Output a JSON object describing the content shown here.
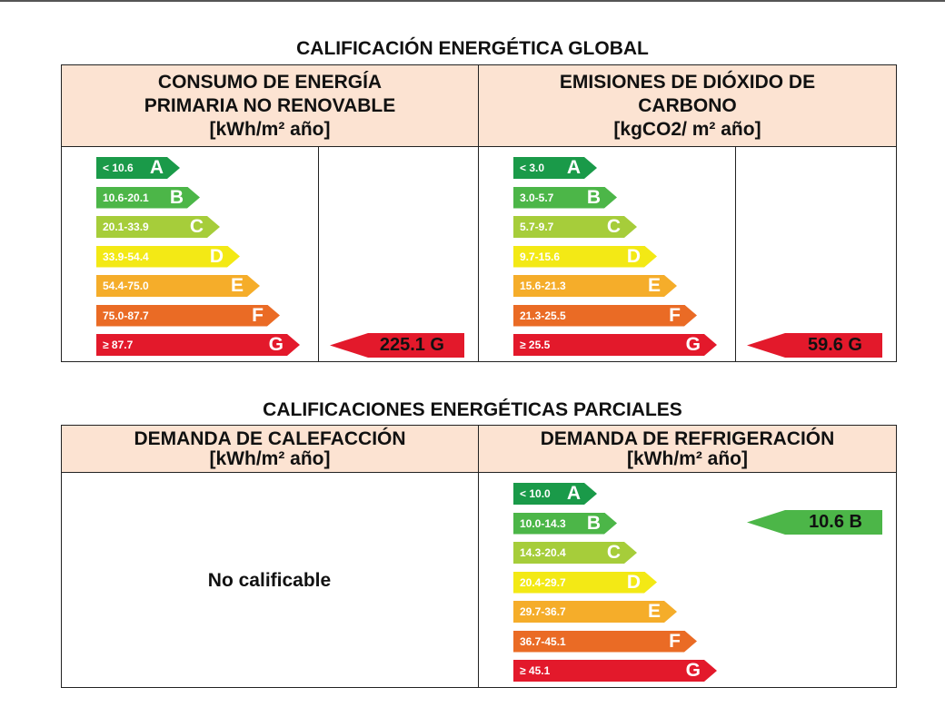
{
  "colors": {
    "A": "#1a9a49",
    "B": "#4cb648",
    "C": "#a6cd3a",
    "D": "#f3e915",
    "E": "#f5ad2a",
    "F": "#ea6b25",
    "G": "#e3192b",
    "header_bg": "#fce3d2"
  },
  "global": {
    "title": "CALIFICACIÓN ENERGÉTICA GLOBAL",
    "consumo": {
      "header": [
        "CONSUMO DE ENERGÍA",
        "PRIMARIA NO RENOVABLE",
        "[kWh/m² año]"
      ],
      "scale": [
        {
          "range": "< 10.6",
          "letter": "A"
        },
        {
          "range": "10.6-20.1",
          "letter": "B"
        },
        {
          "range": "20.1-33.9",
          "letter": "C"
        },
        {
          "range": "33.9-54.4",
          "letter": "D"
        },
        {
          "range": "54.4-75.0",
          "letter": "E"
        },
        {
          "range": "75.0-87.7",
          "letter": "F"
        },
        {
          "range": "≥ 87.7",
          "letter": "G"
        }
      ],
      "value": "225.1 G",
      "value_letter": "G"
    },
    "emisiones": {
      "header": [
        "EMISIONES DE DIÓXIDO DE",
        "CARBONO",
        "[kgCO2/ m² año]"
      ],
      "scale": [
        {
          "range": "< 3.0",
          "letter": "A"
        },
        {
          "range": "3.0-5.7",
          "letter": "B"
        },
        {
          "range": "5.7-9.7",
          "letter": "C"
        },
        {
          "range": "9.7-15.6",
          "letter": "D"
        },
        {
          "range": "15.6-21.3",
          "letter": "E"
        },
        {
          "range": "21.3-25.5",
          "letter": "F"
        },
        {
          "range": "≥ 25.5",
          "letter": "G"
        }
      ],
      "value": "59.6 G",
      "value_letter": "G"
    }
  },
  "parciales": {
    "title": "CALIFICACIONES ENERGÉTICAS PARCIALES",
    "calefaccion": {
      "header": [
        "DEMANDA DE CALEFACCIÓN",
        "[kWh/m² año]"
      ],
      "status": "No calificable"
    },
    "refrigeracion": {
      "header": [
        "DEMANDA DE REFRIGERACIÓN",
        "[kWh/m² año]"
      ],
      "scale": [
        {
          "range": "< 10.0",
          "letter": "A"
        },
        {
          "range": "10.0-14.3",
          "letter": "B"
        },
        {
          "range": "14.3-20.4",
          "letter": "C"
        },
        {
          "range": "20.4-29.7",
          "letter": "D"
        },
        {
          "range": "29.7-36.7",
          "letter": "E"
        },
        {
          "range": "36.7-45.1",
          "letter": "F"
        },
        {
          "range": "≥ 45.1",
          "letter": "G"
        }
      ],
      "value": "10.6 B",
      "value_letter": "B"
    }
  }
}
